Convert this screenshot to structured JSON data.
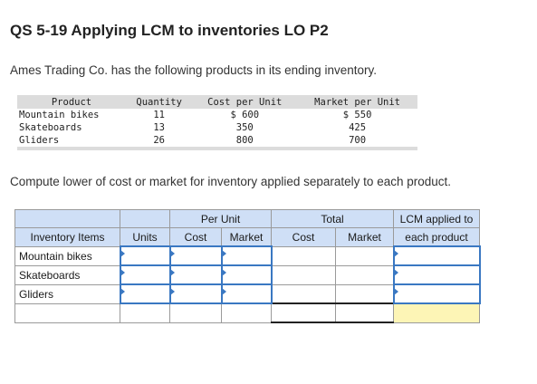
{
  "title": "QS 5-19 Applying LCM to inventories LO P2",
  "intro": "Ames Trading Co. has the following products in its ending inventory.",
  "products_table": {
    "headers": [
      "Product",
      "Quantity",
      "Cost per Unit",
      "Market per Unit"
    ],
    "rows": [
      {
        "product": "Mountain bikes",
        "quantity": "11",
        "cost": "$ 600",
        "market": "$ 550"
      },
      {
        "product": "Skateboards",
        "quantity": "13",
        "cost": "350",
        "market": "425"
      },
      {
        "product": "Gliders",
        "quantity": "26",
        "cost": "800",
        "market": "700"
      }
    ]
  },
  "instruction": "Compute lower of cost or market for inventory applied separately to each product.",
  "lcm_table": {
    "group_per_unit": "Per Unit",
    "group_total": "Total",
    "group_lcm_line1": "LCM applied to",
    "col_items": "Inventory Items",
    "col_units": "Units",
    "col_cost": "Cost",
    "col_market": "Market",
    "col_total_cost": "Cost",
    "col_total_market": "Market",
    "col_lcm_line2": "each product",
    "items": [
      "Mountain bikes",
      "Skateboards",
      "Gliders"
    ]
  },
  "colors": {
    "header_bg": "#cfdff6",
    "input_border": "#3a78c2",
    "total_highlight": "#fdf5b6"
  }
}
